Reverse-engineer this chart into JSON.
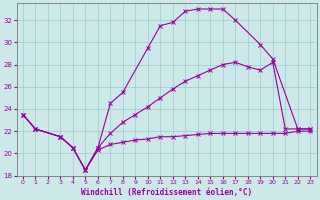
{
  "xlabel": "Windchill (Refroidissement éolien,°C)",
  "ylabel": "",
  "xlim": [
    -0.5,
    23.5
  ],
  "ylim": [
    18,
    33.5
  ],
  "yticks": [
    18,
    20,
    22,
    24,
    26,
    28,
    30,
    32
  ],
  "xticks": [
    0,
    1,
    2,
    3,
    4,
    5,
    6,
    7,
    8,
    9,
    10,
    11,
    12,
    13,
    14,
    15,
    16,
    17,
    18,
    19,
    20,
    21,
    22,
    23
  ],
  "bg_color": "#cce8e8",
  "grid_color": "#99cccc",
  "line_color": "#990099",
  "line_top_x": [
    0,
    1,
    3,
    4,
    5,
    6,
    7,
    8,
    10,
    11,
    12,
    13,
    14,
    15,
    16,
    17,
    19,
    20,
    22,
    23
  ],
  "line_top_y": [
    23.5,
    22.2,
    21.5,
    20.5,
    18.5,
    20.5,
    24.5,
    25.5,
    29.5,
    31.5,
    31.8,
    32.8,
    33.0,
    33.0,
    33.0,
    32.0,
    29.8,
    28.5,
    22.2,
    22.2
  ],
  "line_mid_x": [
    0,
    1,
    3,
    4,
    5,
    6,
    7,
    8,
    9,
    10,
    11,
    12,
    13,
    14,
    15,
    16,
    17,
    18,
    19,
    20,
    21,
    22,
    23
  ],
  "line_mid_y": [
    23.5,
    22.2,
    21.5,
    20.5,
    18.5,
    20.5,
    21.8,
    22.8,
    23.5,
    24.2,
    25.0,
    25.8,
    26.5,
    27.0,
    27.5,
    28.0,
    28.2,
    27.8,
    27.5,
    28.2,
    22.2,
    22.2,
    22.2
  ],
  "line_bot_x": [
    0,
    1,
    3,
    4,
    5,
    6,
    7,
    8,
    9,
    10,
    11,
    12,
    13,
    14,
    15,
    16,
    17,
    18,
    19,
    20,
    21,
    22,
    23
  ],
  "line_bot_y": [
    23.5,
    22.2,
    21.5,
    20.5,
    18.5,
    20.3,
    20.8,
    21.0,
    21.2,
    21.3,
    21.5,
    21.5,
    21.6,
    21.7,
    21.8,
    21.8,
    21.8,
    21.8,
    21.8,
    21.8,
    21.8,
    22.0,
    22.0
  ]
}
